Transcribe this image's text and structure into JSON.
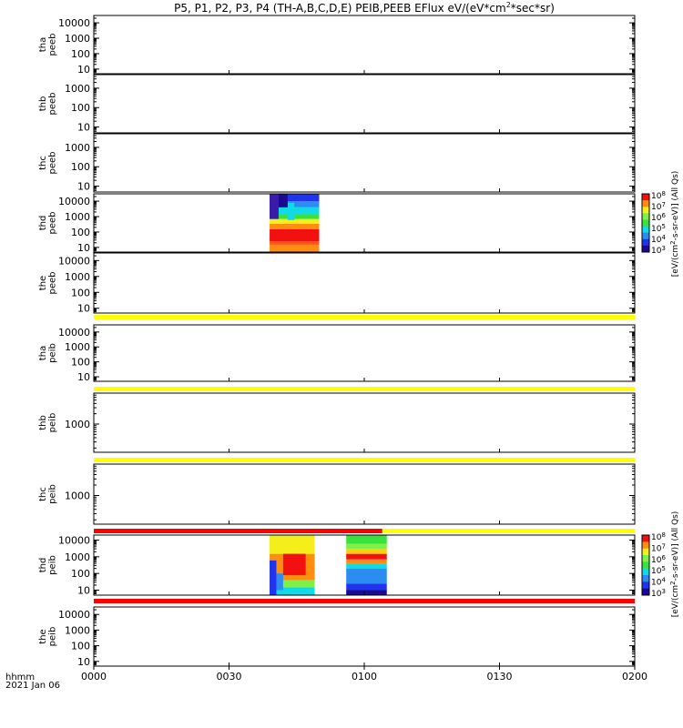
{
  "title": {
    "main": "P5, P1, P2, P3, P4 (TH-A,B,C,D,E) PEIB,PEEB EFlux eV/(eV*cm",
    "sup": "2",
    "tail": "*sec*sr)"
  },
  "colors": {
    "flag_yellow": "#ffff00",
    "flag_red": "#ff0000"
  },
  "footer": {
    "axis_label": "hhmm",
    "date": "2021 Jan 06"
  },
  "chart_data": {
    "type": "heatmap",
    "x_axis": {
      "ticks": [
        "0000",
        "0030",
        "0100",
        "0130",
        "0200"
      ],
      "tick_values_min": [
        0,
        30,
        60,
        90,
        120
      ],
      "range_min": [
        0,
        120
      ]
    },
    "panels": [
      {
        "id": "tha-peeb",
        "label": [
          "tha",
          "peeb"
        ],
        "ylog": true,
        "yrange": [
          5,
          30000
        ],
        "ticks": [
          10,
          100,
          1000,
          10000
        ],
        "tick_labels": [
          "10",
          "100",
          "1000",
          "10000"
        ],
        "data": []
      },
      {
        "id": "thb-peeb",
        "label": [
          "thb",
          "peeb"
        ],
        "ylog": true,
        "yrange": [
          5,
          5000
        ],
        "ticks": [
          10,
          100,
          1000
        ],
        "tick_labels": [
          "10",
          "100",
          "1000"
        ],
        "data": []
      },
      {
        "id": "thc-peeb",
        "label": [
          "thc",
          "peeb"
        ],
        "ylog": true,
        "yrange": [
          5,
          5000
        ],
        "ticks": [
          10,
          100,
          1000
        ],
        "tick_labels": [
          "10",
          "100",
          "1000"
        ],
        "data": []
      },
      {
        "id": "thd-peeb",
        "label": [
          "thd",
          "peeb"
        ],
        "ylog": true,
        "yrange": [
          5,
          30000
        ],
        "ticks": [
          10,
          100,
          1000,
          10000
        ],
        "tick_labels": [
          "10",
          "100",
          "1000",
          "10000"
        ],
        "colorbar": "peeb",
        "data": [
          {
            "t": [
              39,
              50
            ],
            "e": [
              5,
              15
            ],
            "v": "orange"
          },
          {
            "t": [
              39,
              50
            ],
            "e": [
              15,
              25
            ],
            "v": "red-orange"
          },
          {
            "t": [
              39,
              50
            ],
            "e": [
              25,
              150
            ],
            "v": "red"
          },
          {
            "t": [
              39,
              50
            ],
            "e": [
              150,
              350
            ],
            "v": "orange"
          },
          {
            "t": [
              39,
              50
            ],
            "e": [
              350,
              700
            ],
            "v": "yellow"
          },
          {
            "t": [
              39,
              50
            ],
            "e": [
              700,
              1500
            ],
            "v": "green"
          },
          {
            "t": [
              39,
              50
            ],
            "e": [
              1500,
              4000
            ],
            "v": "cyan"
          },
          {
            "t": [
              39,
              50
            ],
            "e": [
              4000,
              10000
            ],
            "v": "light-blue"
          },
          {
            "t": [
              39,
              50
            ],
            "e": [
              10000,
              30000
            ],
            "v": "blue"
          },
          {
            "t": [
              39,
              41
            ],
            "e": [
              700,
              30000
            ],
            "v": "indigo"
          },
          {
            "t": [
              43,
              44.5
            ],
            "e": [
              600,
              8000
            ],
            "v": "cyan"
          },
          {
            "t": [
              41,
              43
            ],
            "e": [
              4000,
              30000
            ],
            "v": "dark-blue"
          }
        ]
      },
      {
        "id": "the-peeb",
        "label": [
          "the",
          "peeb"
        ],
        "ylog": true,
        "yrange": [
          5,
          30000
        ],
        "ticks": [
          10,
          100,
          1000,
          10000
        ],
        "tick_labels": [
          "10",
          "100",
          "1000",
          "10000"
        ],
        "data": []
      },
      {
        "id": "tha-peib",
        "label": [
          "tha",
          "peib"
        ],
        "ylog": true,
        "yrange": [
          5,
          30000
        ],
        "ticks": [
          10,
          100,
          1000,
          10000
        ],
        "tick_labels": [
          "10",
          "100",
          "1000",
          "10000"
        ],
        "data": []
      },
      {
        "id": "thb-peib",
        "label": [
          "thb",
          "peib"
        ],
        "ylog": true,
        "yrange": [
          150,
          8000
        ],
        "ticks": [
          1000
        ],
        "tick_labels": [
          "1000"
        ],
        "data": []
      },
      {
        "id": "thc-peib",
        "label": [
          "thc",
          "peib"
        ],
        "ylog": true,
        "yrange": [
          150,
          8000
        ],
        "ticks": [
          1000
        ],
        "tick_labels": [
          "1000"
        ],
        "data": []
      },
      {
        "id": "thd-peib",
        "label": [
          "thd",
          "peib"
        ],
        "ylog": true,
        "yrange": [
          5,
          20000
        ],
        "ticks": [
          10,
          100,
          1000,
          10000
        ],
        "tick_labels": [
          "10",
          "100",
          "1000",
          "10000"
        ],
        "colorbar": "peib",
        "data": [
          {
            "t": [
              39,
              49
            ],
            "e": [
              5,
              15
            ],
            "v": "cyan"
          },
          {
            "t": [
              39,
              49
            ],
            "e": [
              15,
              40
            ],
            "v": "light-green"
          },
          {
            "t": [
              39,
              49
            ],
            "e": [
              40,
              1500
            ],
            "v": "orange"
          },
          {
            "t": [
              39,
              49
            ],
            "e": [
              1500,
              20000
            ],
            "v": "yellow"
          },
          {
            "t": [
              42,
              47
            ],
            "e": [
              80,
              1500
            ],
            "v": "red"
          },
          {
            "t": [
              39,
              40.5
            ],
            "e": [
              5,
              600
            ],
            "v": "blue"
          },
          {
            "t": [
              40.5,
              42
            ],
            "e": [
              10,
              100
            ],
            "v": "light-blue"
          },
          {
            "t": [
              56,
              65
            ],
            "e": [
              5,
              10
            ],
            "v": "dark-blue"
          },
          {
            "t": [
              56,
              65
            ],
            "e": [
              10,
              25
            ],
            "v": "blue"
          },
          {
            "t": [
              56,
              65
            ],
            "e": [
              25,
              200
            ],
            "v": "light-blue"
          },
          {
            "t": [
              56,
              65
            ],
            "e": [
              200,
              400
            ],
            "v": "cyan"
          },
          {
            "t": [
              56,
              65
            ],
            "e": [
              400,
              700
            ],
            "v": "orange"
          },
          {
            "t": [
              56,
              65
            ],
            "e": [
              700,
              1500
            ],
            "v": "red"
          },
          {
            "t": [
              56,
              65
            ],
            "e": [
              1500,
              3000
            ],
            "v": "yellow-orange"
          },
          {
            "t": [
              56,
              65
            ],
            "e": [
              3000,
              6000
            ],
            "v": "light-green"
          },
          {
            "t": [
              56,
              65
            ],
            "e": [
              6000,
              20000
            ],
            "v": "green"
          }
        ]
      },
      {
        "id": "the-peib",
        "label": [
          "the",
          "peib"
        ],
        "ylog": true,
        "yrange": [
          5,
          30000
        ],
        "ticks": [
          10,
          100,
          1000,
          10000
        ],
        "tick_labels": [
          "10",
          "100",
          "1000",
          "10000"
        ],
        "data": []
      }
    ],
    "flag_bars": [
      {
        "after_panel": "the-peeb",
        "segments": [
          {
            "t": [
              0,
              120
            ],
            "color": "yellow"
          }
        ]
      },
      {
        "after_panel": "tha-peib",
        "segments": [
          {
            "t": [
              0,
              120
            ],
            "color": "yellow"
          }
        ]
      },
      {
        "after_panel": "thb-peib",
        "segments": [
          {
            "t": [
              0,
              120
            ],
            "color": "yellow"
          }
        ]
      },
      {
        "after_panel": "thc-peib",
        "segments": [
          {
            "t": [
              0,
              64
            ],
            "color": "red"
          },
          {
            "t": [
              64,
              120
            ],
            "color": "yellow"
          }
        ]
      },
      {
        "after_panel": "thd-peib",
        "segments": [
          {
            "t": [
              0,
              120
            ],
            "color": "red"
          }
        ]
      }
    ],
    "colorbars": [
      {
        "id": "peeb",
        "label": "[eV/(cm^2-s-sr-eV)] (All Qs)",
        "label_main": "[eV/(cm",
        "label_sup": "2",
        "label_tail": "-s-sr-eV)] (All Qs)",
        "tick_base": "10",
        "tick_exp": [
          "3",
          "4",
          "5",
          "6",
          "7",
          "8"
        ]
      },
      {
        "id": "peib",
        "label": "[eV/(cm^2-s-sr-eV)] (All Qs)",
        "label_main": "[eV/(cm",
        "label_sup": "2",
        "label_tail": "-s-sr-eV)] (All Qs)",
        "tick_base": "10",
        "tick_exp": [
          "3",
          "4",
          "5",
          "6",
          "7",
          "8"
        ]
      }
    ]
  }
}
